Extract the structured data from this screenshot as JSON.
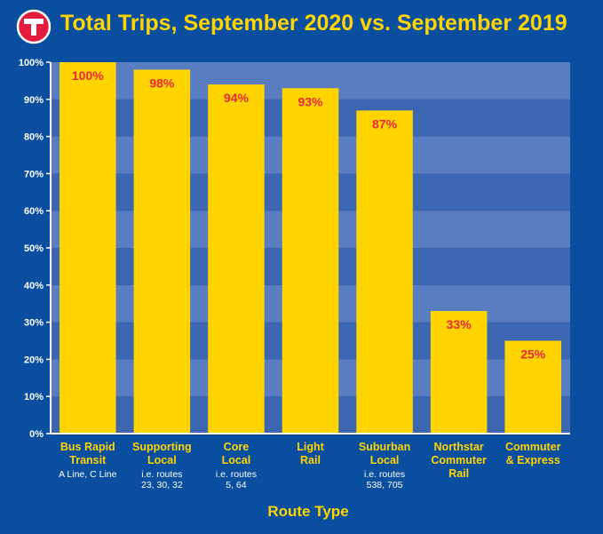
{
  "colors": {
    "background": "#0a4ea0",
    "band_light": "#5a7dc2",
    "band_dark": "#3d66b0",
    "bar": "#ffd400",
    "value_label": "#e8283c",
    "title": "#ffd400",
    "axis_text": "#ffffff",
    "logo_red": "#e31c3d"
  },
  "logo": {
    "letter": "T"
  },
  "chart_data": {
    "type": "bar",
    "title": "Total Trips, September 2020 vs. September 2019",
    "xlabel": "Route Type",
    "ylabel": "",
    "ylim": [
      0,
      100
    ],
    "yticks": [
      "0%",
      "10%",
      "20%",
      "30%",
      "40%",
      "50%",
      "60%",
      "70%",
      "80%",
      "90%",
      "100%"
    ],
    "categories": [
      {
        "name": [
          "Bus Rapid",
          "Transit"
        ],
        "sub": [
          "A Line, C Line"
        ]
      },
      {
        "name": [
          "Supporting",
          "Local"
        ],
        "sub": [
          "i.e. routes",
          "23, 30, 32"
        ]
      },
      {
        "name": [
          "Core",
          "Local"
        ],
        "sub": [
          "i.e. routes",
          "5, 64"
        ]
      },
      {
        "name": [
          "Light",
          "Rail"
        ],
        "sub": []
      },
      {
        "name": [
          "Suburban",
          "Local"
        ],
        "sub": [
          "i.e. routes",
          "538, 705"
        ]
      },
      {
        "name": [
          "Northstar",
          "Commuter",
          "Rail"
        ],
        "sub": []
      },
      {
        "name": [
          "Commuter",
          "& Express"
        ],
        "sub": []
      }
    ],
    "values": [
      100,
      98,
      94,
      93,
      87,
      33,
      25
    ],
    "value_labels": [
      "100%",
      "98%",
      "94%",
      "93%",
      "87%",
      "33%",
      "25%"
    ],
    "grid": "alternating horizontal bands",
    "legend": "none"
  }
}
